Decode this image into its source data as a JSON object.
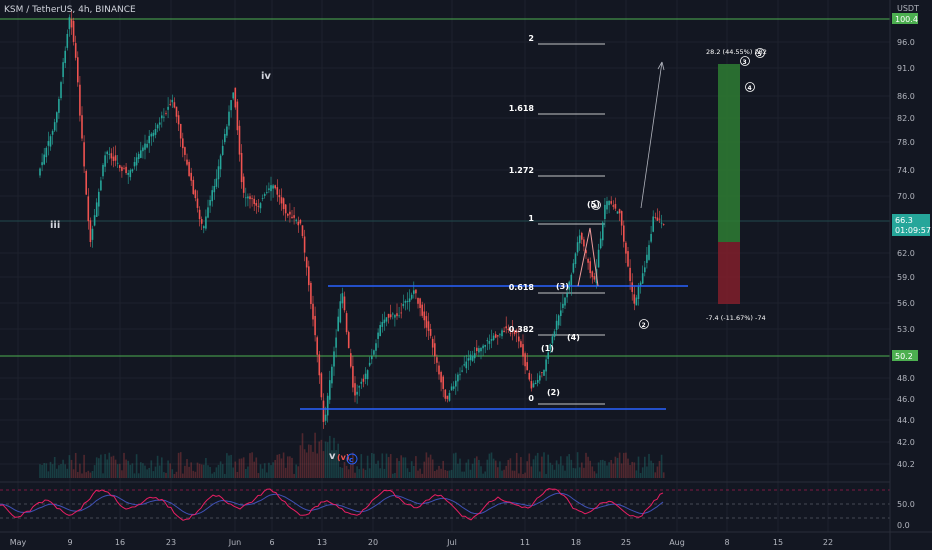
{
  "header": {
    "title": "KSM / TetherUS, 4h, BINANCE",
    "currency": "USDT"
  },
  "colors": {
    "background": "#131722",
    "candle_up": "#26a69a",
    "candle_down": "#ef5350",
    "channel_line": "#2962ff",
    "horizontal_line": "#4caf50",
    "rsi_line": "#e91e63",
    "rsi_ma": "#3f51b5",
    "profit_zone": "#2e7d32",
    "loss_zone": "#7b1e2a"
  },
  "price_axis": {
    "ticks": [
      "96.0",
      "91.0",
      "86.0",
      "82.0",
      "78.0",
      "74.0",
      "70.0",
      "66.0",
      "62.0",
      "59.0",
      "56.0",
      "53.0",
      "50.0",
      "48.0",
      "46.0",
      "44.0",
      "42.0",
      "40.2"
    ],
    "tags": [
      {
        "label": "100.4",
        "color": "#4caf50"
      },
      {
        "label": "66.3",
        "color": "#26a69a"
      },
      {
        "label": "01:09:57",
        "color": "#26a69a"
      },
      {
        "label": "50.2",
        "color": "#4caf50"
      }
    ]
  },
  "rsi_axis": {
    "ticks": [
      "50.0",
      "0.0"
    ]
  },
  "time_axis": {
    "ticks": [
      "May",
      "9",
      "16",
      "23",
      "Jun",
      "6",
      "13",
      "20",
      "Jul",
      "11",
      "18",
      "25",
      "Aug",
      "8",
      "15",
      "22"
    ]
  },
  "fib": {
    "levels": [
      "2",
      "1.618",
      "1.272",
      "1",
      "0.618",
      "0.382",
      "0"
    ]
  },
  "waves": {
    "roman": [
      "iii",
      "iv",
      "v"
    ],
    "minor": [
      "(1)",
      "(2)",
      "(3)",
      "(4)",
      "(5)",
      "(v)"
    ],
    "circled": [
      "a",
      "c",
      "2",
      "3",
      "4",
      "5"
    ]
  },
  "risk_reward": {
    "target_label": "28.2 (44.55%) 282",
    "stop_label": "-7.4 (-11.67%) -74"
  },
  "chart_data": {
    "type": "candlestick",
    "title": "KSM / TetherUS, 4h, BINANCE",
    "x_labels": [
      "May",
      "9",
      "16",
      "23",
      "Jun",
      "6",
      "13",
      "20",
      "Jul",
      "11",
      "18",
      "25",
      "Aug",
      "8",
      "15",
      "22"
    ],
    "price_range": [
      40,
      101
    ],
    "current_price": 66.3,
    "resistance_line": 100.4,
    "support_line": 50.2,
    "approx_swing_points": [
      {
        "x": "May 7",
        "y": 100.0
      },
      {
        "x": "May 13",
        "y": 63.0
      },
      {
        "x": "May 27",
        "y": 88.0
      },
      {
        "x": "Jun 1",
        "y": 66.0
      },
      {
        "x": "Jun 6",
        "y": 73.0
      },
      {
        "x": "Jun 13",
        "y": 43.0
      },
      {
        "x": "Jun 16",
        "y": 58.5
      },
      {
        "x": "Jun 30",
        "y": 45.5
      },
      {
        "x": "Jul 3",
        "y": 58.5
      },
      {
        "x": "Jul 12",
        "y": 47.0
      },
      {
        "x": "Jul 21",
        "y": 69.5
      },
      {
        "x": "Jul 26",
        "y": 56.0
      },
      {
        "x": "Jul 28",
        "y": 66.3
      }
    ],
    "rsi": {
      "levels": [
        70,
        50,
        30
      ],
      "ticks": [
        "50.0",
        "0.0"
      ]
    }
  }
}
